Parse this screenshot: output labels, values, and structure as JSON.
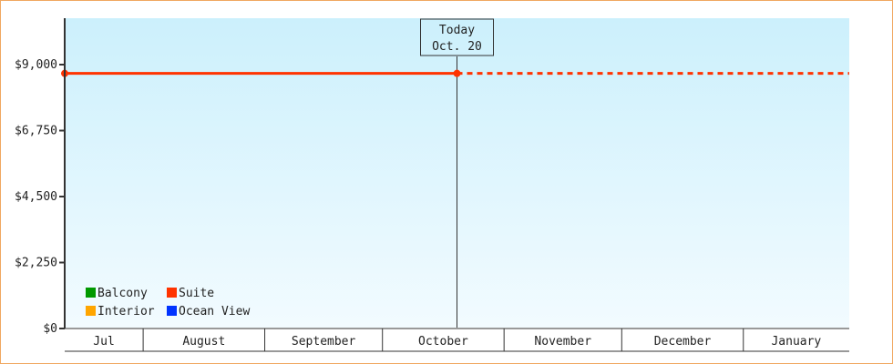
{
  "chart_data": {
    "type": "line",
    "title": "",
    "xlabel": "",
    "ylabel": "",
    "ylim": [
      0,
      10500
    ],
    "yticks": [
      0,
      2250,
      4500,
      6750,
      9000
    ],
    "ytick_labels": [
      "$0",
      "$2,250",
      "$4,500",
      "$6,750",
      "$9,000"
    ],
    "xlim": [
      "Jul 12",
      "Jan 28"
    ],
    "months": [
      "Jul",
      "August",
      "September",
      "October",
      "November",
      "December",
      "January"
    ],
    "grid": false,
    "background_gradient": [
      "#ccf0fc",
      "#f2fbff"
    ],
    "today_marker": {
      "line1": "Today",
      "line2": "Oct. 20",
      "date": "Oct 20"
    },
    "series": [
      {
        "name": "Suite",
        "color": "#ff3300",
        "points": [
          {
            "x": "Jul 12",
            "y": 8700
          },
          {
            "x": "Oct 20",
            "y": 8700
          }
        ],
        "projection_to": "Jan 28"
      }
    ],
    "legend": {
      "placement": "bottom-left",
      "items": [
        {
          "name": "Balcony",
          "color": "#009900"
        },
        {
          "name": "Suite",
          "color": "#ff3300"
        },
        {
          "name": "Interior",
          "color": "#ffa500"
        },
        {
          "name": "Ocean View",
          "color": "#0033ff"
        }
      ]
    }
  }
}
